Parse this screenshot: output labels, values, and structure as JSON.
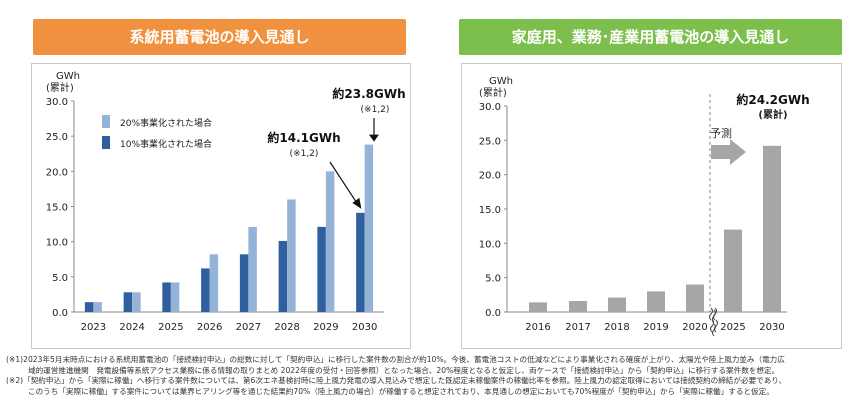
{
  "left_panel": {
    "title": "系統用蓄電池の導入見通し",
    "accent": "#f0913f"
  },
  "right_panel": {
    "title": "家庭用、業務･産業用蓄電池の導入見通し",
    "accent": "#7cbf4c"
  },
  "chart_data": [
    {
      "type": "bar",
      "ylabel": "GWh",
      "ylabel_sub": "(累計)",
      "ylim": [
        0,
        30
      ],
      "yticks": [
        "0.0",
        "5.0",
        "10.0",
        "15.0",
        "20.0",
        "25.0",
        "30.0"
      ],
      "categories": [
        "2023",
        "2024",
        "2025",
        "2026",
        "2027",
        "2028",
        "2029",
        "2030"
      ],
      "series": [
        {
          "name": "10%事業化された場合",
          "color": "#2f5f9f",
          "values": [
            1.4,
            2.8,
            4.2,
            6.2,
            8.2,
            10.1,
            12.1,
            14.1
          ]
        },
        {
          "name": "20%事業化された場合",
          "color": "#95b3d7",
          "values": [
            1.4,
            2.8,
            4.2,
            8.2,
            12.1,
            16.0,
            20.0,
            23.8
          ]
        }
      ],
      "legend_position": "top-left",
      "annotations": [
        {
          "text": "約23.8GWh",
          "note": "(※1,2)"
        },
        {
          "text": "約14.1GWh",
          "note": "(※1,2)"
        }
      ]
    },
    {
      "type": "bar",
      "ylabel": "GWh",
      "ylabel_sub": "(累計)",
      "ylim": [
        0,
        30
      ],
      "yticks": [
        "0.0",
        "5.0",
        "10.0",
        "15.0",
        "20.0",
        "25.0",
        "30.0"
      ],
      "categories": [
        "2016",
        "2017",
        "2018",
        "2019",
        "2020",
        "2025",
        "2030"
      ],
      "series": [
        {
          "color": "#a6a6a6",
          "values": [
            1.4,
            1.6,
            2.1,
            3.0,
            4.0,
            12.0,
            24.2
          ]
        }
      ],
      "forecast_label": "予測",
      "annotations": [
        {
          "text": "約24.2GWh",
          "note": "(累計)"
        }
      ]
    }
  ],
  "notes": [
    "(※1)2023年5月末時点における系統用蓄電池の「接続検討申込」の総数に対して「契約申込」に移行した案件数の割合が約10%。今後、蓄電池コストの低減などにより事業化される確度が上がり、太陽光や陸上風力並み（電力広",
    "域的運営推進機関　発電設備等系統アクセス業務に係る情報の取りまとめ 2022年度の受付・回答参照）となった場合、20%程度となると仮定し、両ケースで「接続検討申込」から「契約申込」に移行する案件数を想定。",
    "(※2)「契約申込」から「実際に稼働」へ移行する案件数については、第6次エネ基検討時に陸上風力発電の導入見込みで想定した既認定未稼働案件の稼働比率を参照。陸上風力の認定取得においては接続契約の締結が必要であり、",
    "このうち「実際に稼働」する案件については業界ヒアリング等を通じた結果約70%（陸上風力の場合）が稼働すると想定されており、本見通しの想定においても70%程度が「契約申込」から「実際に稼働」すると仮定。"
  ]
}
